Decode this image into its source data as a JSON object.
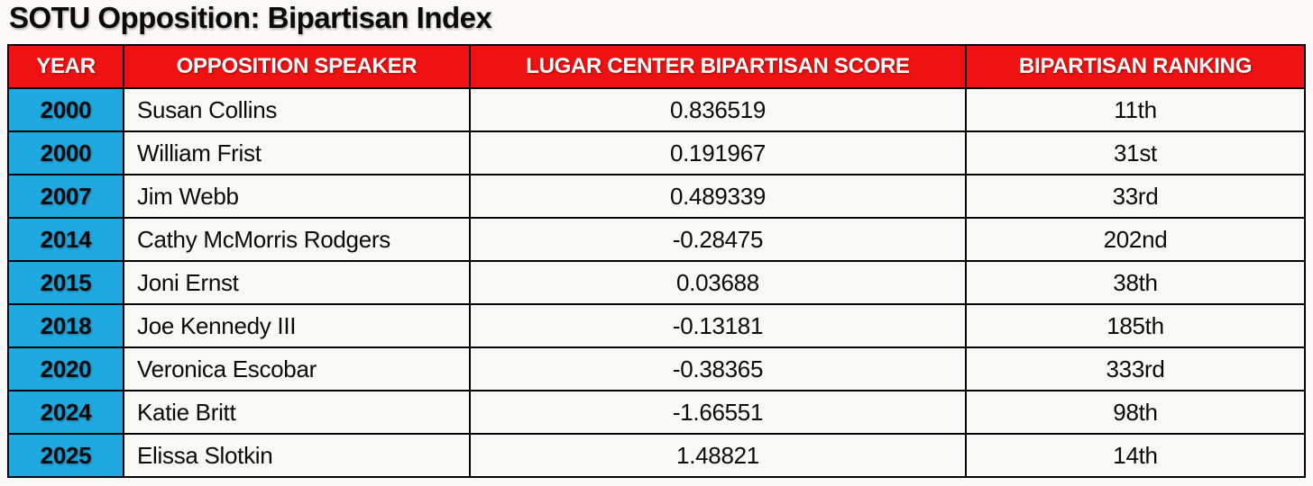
{
  "title": "SOTU Opposition: Bipartisan Index",
  "colors": {
    "header_bg": "#EE1212",
    "header_text": "#FFFFFF",
    "year_bg": "#1FA9E1",
    "cell_bg": "#F8F8F7",
    "border": "#000000",
    "page_bg": "#FAF9F7"
  },
  "table": {
    "columns": [
      "YEAR",
      "OPPOSITION SPEAKER",
      "LUGAR CENTER BIPARTISAN SCORE",
      "BIPARTISAN RANKING"
    ]
  },
  "rows": [
    {
      "year": "2000",
      "speaker": "Susan Collins",
      "score": "0.836519",
      "ranking": "11th"
    },
    {
      "year": "2000",
      "speaker": "William Frist",
      "score": "0.191967",
      "ranking": "31st"
    },
    {
      "year": "2007",
      "speaker": "Jim Webb",
      "score": "0.489339",
      "ranking": "33rd"
    },
    {
      "year": "2014",
      "speaker": "Cathy McMorris Rodgers",
      "score": "-0.28475",
      "ranking": "202nd"
    },
    {
      "year": "2015",
      "speaker": "Joni Ernst",
      "score": "0.03688",
      "ranking": "38th"
    },
    {
      "year": "2018",
      "speaker": "Joe Kennedy III",
      "score": "-0.13181",
      "ranking": "185th"
    },
    {
      "year": "2020",
      "speaker": "Veronica Escobar",
      "score": "-0.38365",
      "ranking": "333rd"
    },
    {
      "year": "2024",
      "speaker": "Katie Britt",
      "score": "-1.66551",
      "ranking": "98th"
    },
    {
      "year": "2025",
      "speaker": "Elissa Slotkin",
      "score": "1.48821",
      "ranking": "14th"
    }
  ],
  "chart_data": {
    "type": "table",
    "title": "SOTU Opposition: Bipartisan Index",
    "columns": [
      "YEAR",
      "OPPOSITION SPEAKER",
      "LUGAR CENTER BIPARTISAN SCORE",
      "BIPARTISAN RANKING"
    ],
    "rows": [
      [
        "2000",
        "Susan Collins",
        0.836519,
        "11th"
      ],
      [
        "2000",
        "William Frist",
        0.191967,
        "31st"
      ],
      [
        "2007",
        "Jim Webb",
        0.489339,
        "33rd"
      ],
      [
        "2014",
        "Cathy McMorris Rodgers",
        -0.28475,
        "202nd"
      ],
      [
        "2015",
        "Joni Ernst",
        0.03688,
        "38th"
      ],
      [
        "2018",
        "Joe Kennedy III",
        -0.13181,
        "185th"
      ],
      [
        "2020",
        "Veronica Escobar",
        -0.38365,
        "333rd"
      ],
      [
        "2024",
        "Katie Britt",
        -1.66551,
        "98th"
      ],
      [
        "2025",
        "Elissa Slotkin",
        1.48821,
        "14th"
      ]
    ]
  }
}
